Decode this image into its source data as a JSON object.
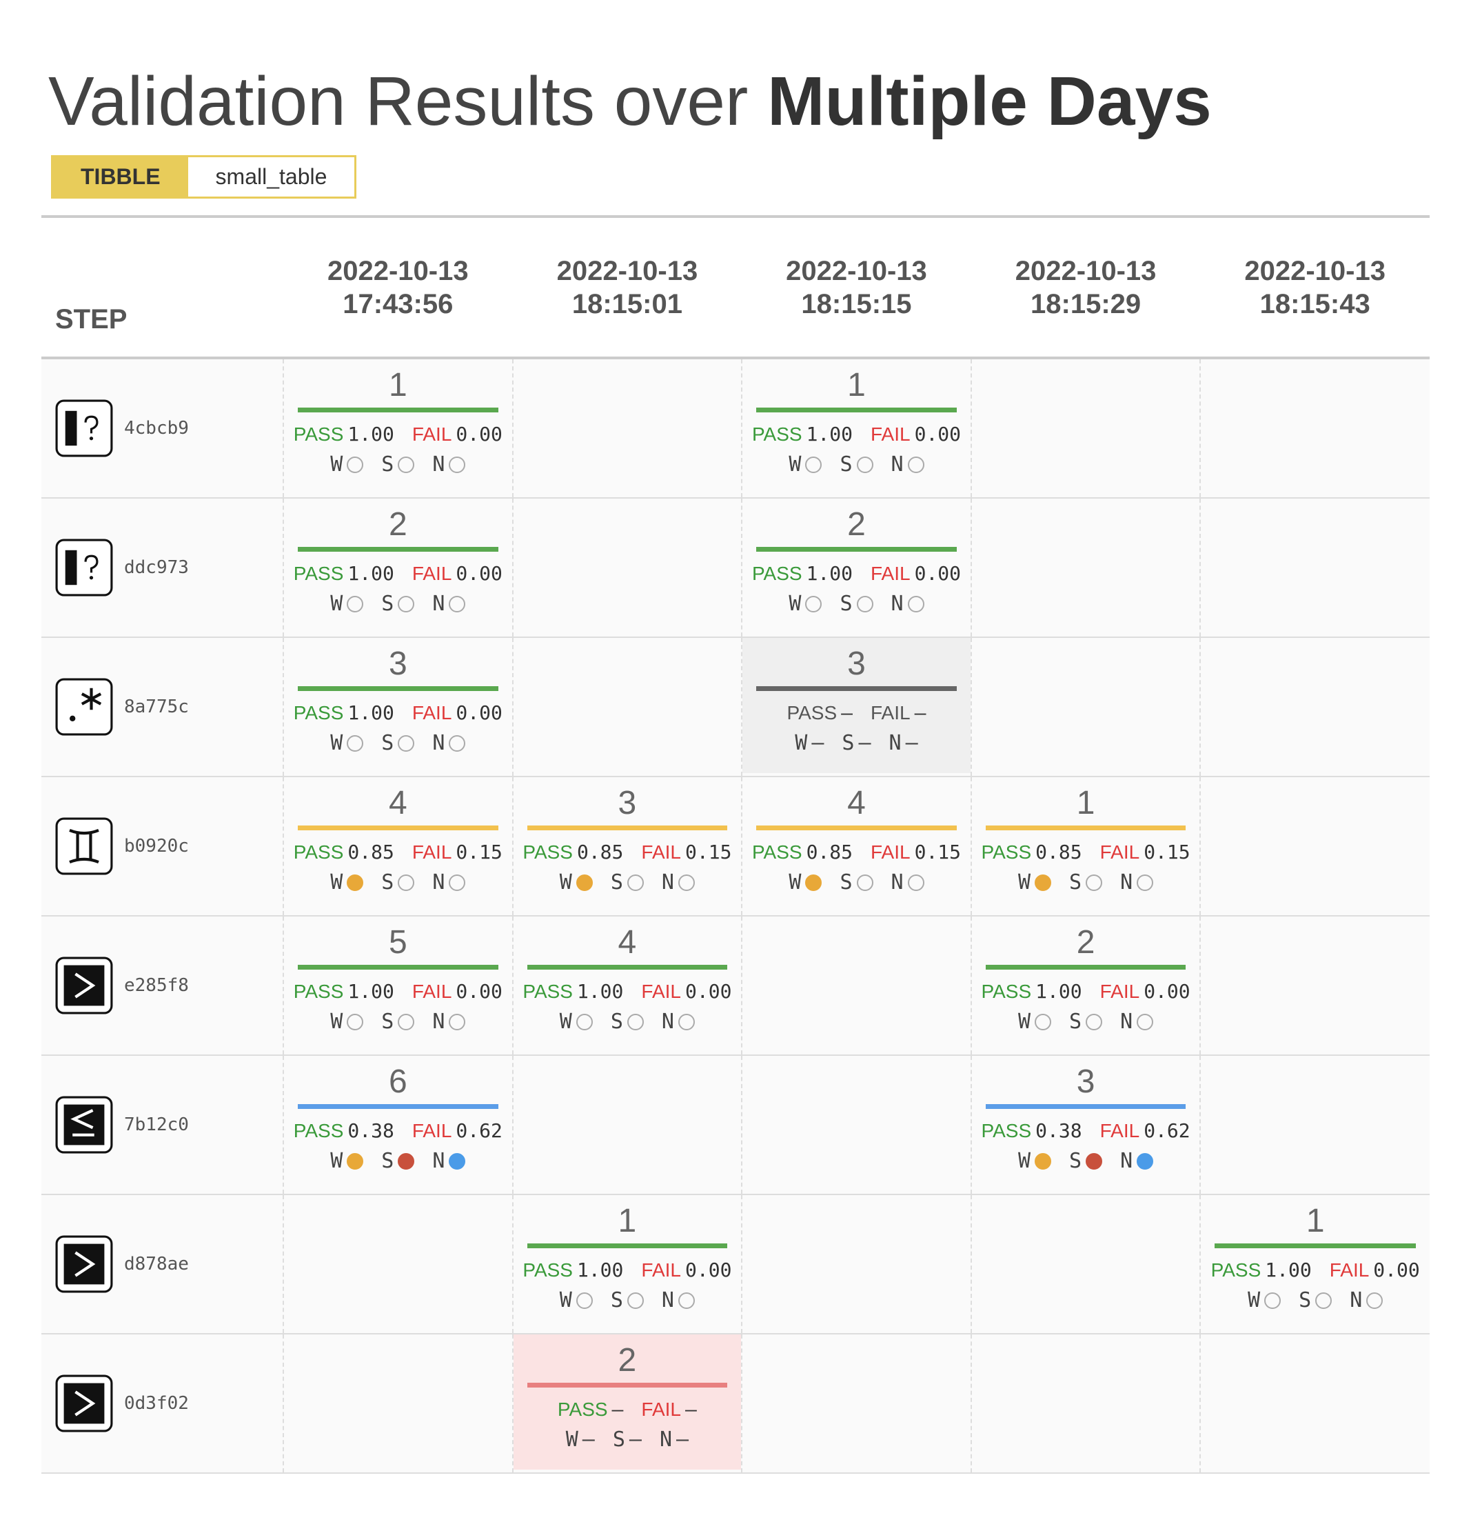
{
  "header": {
    "title": "Validation Results over",
    "title_emphasis": "Multiple Days",
    "tag": "TIBBLE",
    "table_name": "small_table"
  },
  "labels": {
    "step": "STEP",
    "pass": "PASS",
    "fail": "FAIL",
    "w": "W",
    "s": "S",
    "n": "N"
  },
  "columns": [
    {
      "date": "2022-10-13",
      "time": "17:43:56"
    },
    {
      "date": "2022-10-13",
      "time": "18:15:01"
    },
    {
      "date": "2022-10-13",
      "time": "18:15:15"
    },
    {
      "date": "2022-10-13",
      "time": "18:15:29"
    },
    {
      "date": "2022-10-13",
      "time": "18:15:43"
    }
  ],
  "rows": [
    {
      "hash": "4cbcb9",
      "cells": [
        {
          "step": 1,
          "bar_color": "#5aa84f",
          "pass": "1.00",
          "fail": "0.00",
          "w": "none",
          "s": "none",
          "n": "none"
        },
        null,
        {
          "step": 1,
          "bar_color": "#5aa84f",
          "pass": "1.00",
          "fail": "0.00",
          "w": "none",
          "s": "none",
          "n": "none"
        },
        null,
        null
      ]
    },
    {
      "hash": "ddc973",
      "cells": [
        {
          "step": 2,
          "bar_color": "#5aa84f",
          "pass": "1.00",
          "fail": "0.00",
          "w": "none",
          "s": "none",
          "n": "none"
        },
        null,
        {
          "step": 2,
          "bar_color": "#5aa84f",
          "pass": "1.00",
          "fail": "0.00",
          "w": "none",
          "s": "none",
          "n": "none"
        },
        null,
        null
      ]
    },
    {
      "hash": "8a775c",
      "cells": [
        {
          "step": 3,
          "bar_color": "#5aa84f",
          "pass": "1.00",
          "fail": "0.00",
          "w": "none",
          "s": "none",
          "n": "none"
        },
        null,
        {
          "step": 3,
          "bar_color": "#666666",
          "background": "#efefef",
          "label_color": "#555555",
          "pass": "—",
          "fail": "—",
          "w": "—",
          "s": "—",
          "n": "—"
        },
        null,
        null
      ]
    },
    {
      "hash": "b0920c",
      "cells": [
        {
          "step": 4,
          "bar_color": "#f2c14e",
          "pass": "0.85",
          "fail": "0.15",
          "w": "#e8a838",
          "s": "none",
          "n": "none"
        },
        {
          "step": 3,
          "bar_color": "#f2c14e",
          "pass": "0.85",
          "fail": "0.15",
          "w": "#e8a838",
          "s": "none",
          "n": "none"
        },
        {
          "step": 4,
          "bar_color": "#f2c14e",
          "pass": "0.85",
          "fail": "0.15",
          "w": "#e8a838",
          "s": "none",
          "n": "none"
        },
        {
          "step": 1,
          "bar_color": "#f2c14e",
          "pass": "0.85",
          "fail": "0.15",
          "w": "#e8a838",
          "s": "none",
          "n": "none"
        },
        null
      ]
    },
    {
      "hash": "e285f8",
      "cells": [
        {
          "step": 5,
          "bar_color": "#5aa84f",
          "pass": "1.00",
          "fail": "0.00",
          "w": "none",
          "s": "none",
          "n": "none"
        },
        {
          "step": 4,
          "bar_color": "#5aa84f",
          "pass": "1.00",
          "fail": "0.00",
          "w": "none",
          "s": "none",
          "n": "none"
        },
        null,
        {
          "step": 2,
          "bar_color": "#5aa84f",
          "pass": "1.00",
          "fail": "0.00",
          "w": "none",
          "s": "none",
          "n": "none"
        },
        null
      ]
    },
    {
      "hash": "7b12c0",
      "cells": [
        {
          "step": 6,
          "bar_color": "#5b9de8",
          "pass": "0.38",
          "fail": "0.62",
          "w": "#e8a838",
          "s": "#c8503c",
          "n": "#4a9be8"
        },
        null,
        null,
        {
          "step": 3,
          "bar_color": "#5b9de8",
          "pass": "0.38",
          "fail": "0.62",
          "w": "#e8a838",
          "s": "#c8503c",
          "n": "#4a9be8"
        },
        null
      ]
    },
    {
      "hash": "d878ae",
      "cells": [
        null,
        {
          "step": 1,
          "bar_color": "#5aa84f",
          "pass": "1.00",
          "fail": "0.00",
          "w": "none",
          "s": "none",
          "n": "none"
        },
        null,
        null,
        {
          "step": 1,
          "bar_color": "#5aa84f",
          "pass": "1.00",
          "fail": "0.00",
          "w": "none",
          "s": "none",
          "n": "none"
        }
      ]
    },
    {
      "hash": "0d3f02",
      "cells": [
        null,
        {
          "step": 2,
          "bar_color": "#e88080",
          "background": "#fbe3e3",
          "pass": "—",
          "fail": "—",
          "w": "—",
          "s": "—",
          "n": "—"
        },
        null,
        null,
        null
      ]
    }
  ]
}
